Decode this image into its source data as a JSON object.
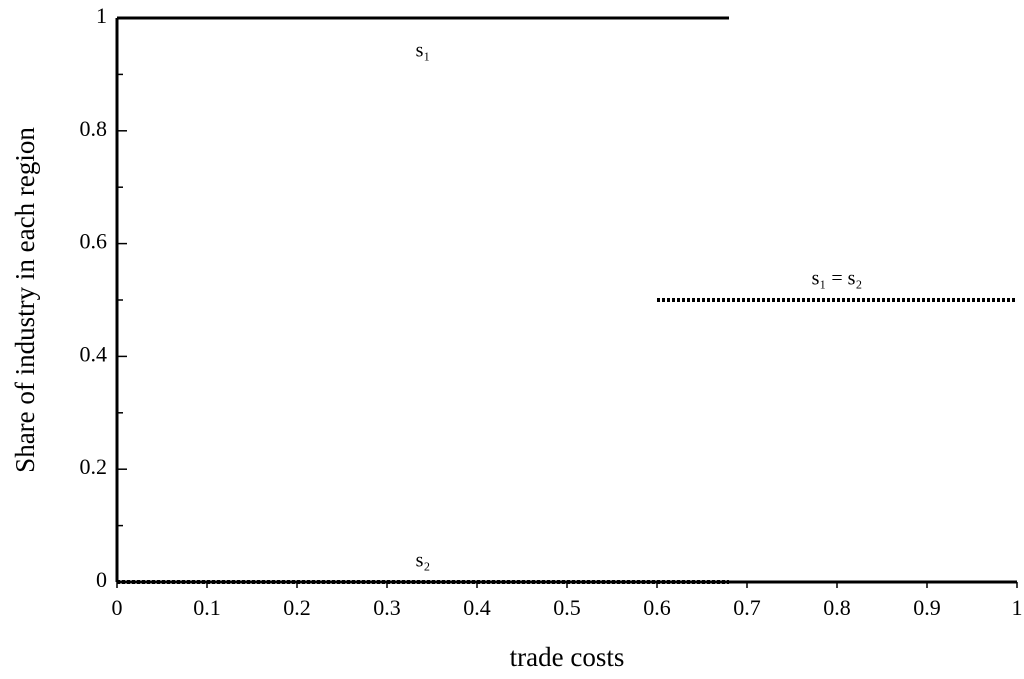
{
  "chart_data": {
    "type": "line",
    "xlabel": "trade costs",
    "ylabel": "Share of industry in each region",
    "xlim": [
      0,
      1
    ],
    "xticks": [
      0,
      0.1,
      0.2,
      0.3,
      0.4,
      0.5,
      0.6,
      0.7,
      0.8,
      0.9,
      1
    ],
    "ylim": [
      0,
      1
    ],
    "yticks": [
      0,
      0.2,
      0.4,
      0.6,
      0.8,
      1
    ],
    "yminorticks": [
      0.1,
      0.3,
      0.5,
      0.7,
      0.9
    ],
    "series": [
      {
        "name": "s₁",
        "color": "#000000",
        "style": "solid",
        "x": [
          0,
          0.68
        ],
        "values": [
          1,
          1
        ]
      },
      {
        "name": "s₂",
        "color": "#000000",
        "style": "dotted",
        "x": [
          0,
          0.68
        ],
        "values": [
          0,
          0
        ]
      },
      {
        "name": "s₁ = s₂",
        "color": "#000000",
        "style": "dotted",
        "x": [
          0.6,
          1
        ],
        "values": [
          0.5,
          0.5
        ]
      }
    ]
  }
}
